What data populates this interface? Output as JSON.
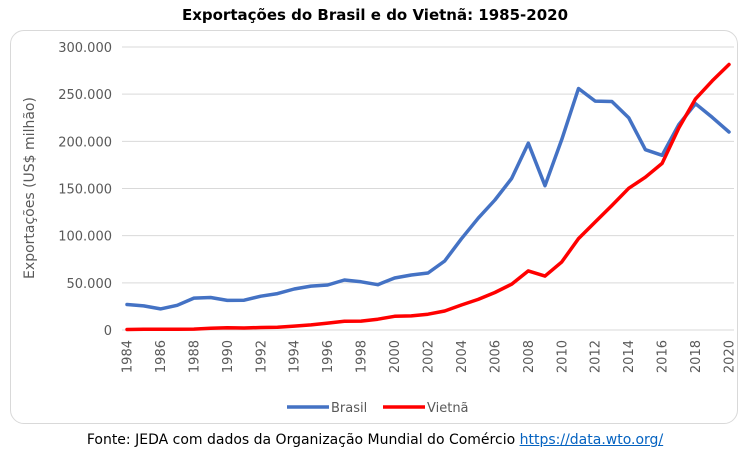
{
  "chart_data": {
    "type": "line",
    "title": "Exportações do Brasil e do Vietnã: 1985-2020",
    "xlabel": "",
    "ylabel": "Exportações (US$ milhão)",
    "ylim": [
      0,
      300000
    ],
    "yticks": [
      "0",
      "50.000",
      "100.000",
      "150.000",
      "200.000",
      "250.000",
      "300.000"
    ],
    "xticks": [
      "1984",
      "1986",
      "1988",
      "1990",
      "1992",
      "1994",
      "1996",
      "1998",
      "2000",
      "2002",
      "2004",
      "2006",
      "2008",
      "2010",
      "2012",
      "2014",
      "2016",
      "2018",
      "2020"
    ],
    "grid": true,
    "legend_position": "bottom",
    "x": [
      1984,
      1985,
      1986,
      1987,
      1988,
      1989,
      1990,
      1991,
      1992,
      1993,
      1994,
      1995,
      1996,
      1997,
      1998,
      1999,
      2000,
      2001,
      2002,
      2003,
      2004,
      2005,
      2006,
      2007,
      2008,
      2009,
      2010,
      2011,
      2012,
      2013,
      2014,
      2015,
      2016,
      2017,
      2018,
      2019,
      2020
    ],
    "series": [
      {
        "name": "Brasil",
        "color": "#4472c4",
        "values": [
          27000,
          25600,
          22400,
          26200,
          33800,
          34400,
          31400,
          31600,
          35800,
          38600,
          43500,
          46500,
          47700,
          53000,
          51100,
          48000,
          55100,
          58300,
          60400,
          73100,
          96700,
          118500,
          137800,
          160600,
          198000,
          153000,
          202000,
          256000,
          242600,
          242200,
          225100,
          191100,
          185200,
          217700,
          239900,
          225400,
          209900
        ]
      },
      {
        "name": "Vietnã",
        "color": "#ff0000",
        "values": [
          500,
          700,
          800,
          900,
          1000,
          1900,
          2400,
          2100,
          2600,
          3000,
          4100,
          5400,
          7300,
          9200,
          9400,
          11500,
          14500,
          15000,
          16700,
          20100,
          26500,
          32400,
          39800,
          48600,
          62700,
          57100,
          72200,
          96900,
          114500,
          132000,
          150200,
          162000,
          176600,
          214100,
          245000,
          264200,
          281400
        ]
      }
    ]
  },
  "source": {
    "text": "Fonte: JEDA com dados da Organização Mundial do Comércio ",
    "link": "https://data.wto.org/"
  }
}
